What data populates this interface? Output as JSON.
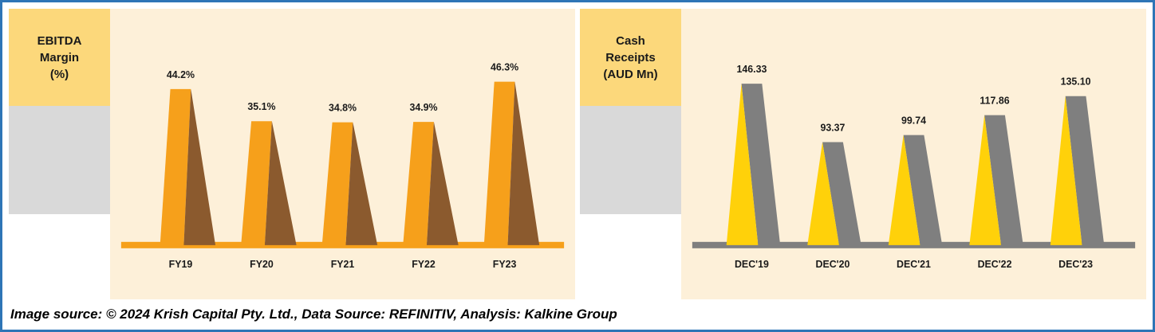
{
  "frame": {
    "caption": "Image source: © 2024 Krish Capital Pty. Ltd., Data Source: REFINITIV, Analysis: Kalkine Group"
  },
  "colors": {
    "border": "#2E75B6",
    "panel_bg": "#FDF0D9",
    "label_box_bg": "#FCD87B",
    "side_box_bg": "#D9D9D9",
    "text": "#1A1A1A"
  },
  "chart_data": [
    {
      "type": "bar",
      "title": "EBITDA\nMargin\n(%)",
      "categories": [
        "FY19",
        "FY20",
        "FY21",
        "FY22",
        "FY23"
      ],
      "values": [
        44.2,
        35.1,
        34.8,
        34.9,
        46.3
      ],
      "value_labels": [
        "44.2%",
        "35.1%",
        "34.8%",
        "34.9%",
        "46.3%"
      ],
      "ylim": [
        0,
        50
      ],
      "ylabel": "EBITDA Margin (%)",
      "xlabel": "",
      "grid": false,
      "legend": "none",
      "bar_color": "#F6A01B",
      "shadow_color": "#8B5A2E",
      "baseline_color": "#F6A01B",
      "band_side": "left"
    },
    {
      "type": "bar",
      "title": "Cash\nReceipts\n(AUD Mn)",
      "categories": [
        "DEC'19",
        "DEC'20",
        "DEC'21",
        "DEC'22",
        "DEC'23"
      ],
      "values": [
        146.33,
        93.37,
        99.74,
        117.86,
        135.1
      ],
      "value_labels": [
        "146.33",
        "93.37",
        "99.74",
        "117.86",
        "135.10"
      ],
      "ylim": [
        0,
        160
      ],
      "ylabel": "Cash Receipts (AUD Mn)",
      "xlabel": "",
      "grid": false,
      "legend": "none",
      "bar_color": "#FFD10A",
      "shadow_color": "#7F7F7F",
      "baseline_color": "#7F7F7F",
      "band_side": "right"
    }
  ]
}
